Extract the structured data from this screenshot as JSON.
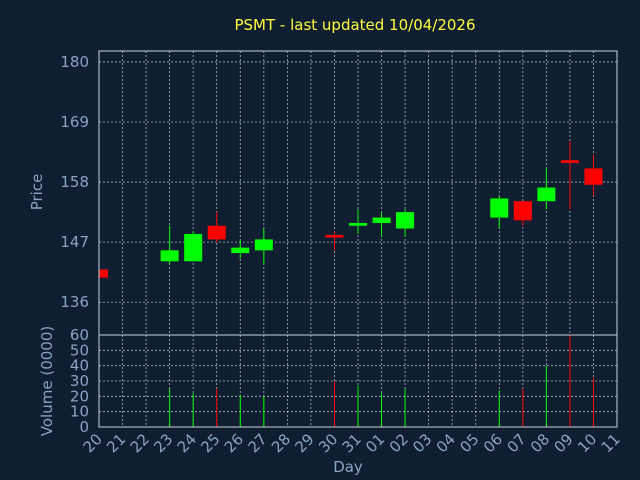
{
  "chart_data": {
    "type": "candlestick",
    "title": "PSMT - last updated 10/04/2026",
    "xlabel": "Day",
    "price_ylabel": "Price",
    "volume_ylabel": "Volume (0000)",
    "price_ylim": [
      130,
      182
    ],
    "price_ticks": [
      136,
      147,
      158,
      169,
      180
    ],
    "volume_ylim": [
      0,
      60
    ],
    "volume_ticks": [
      0,
      10,
      20,
      30,
      40,
      50,
      60
    ],
    "x_ticks": [
      "20",
      "21",
      "22",
      "23",
      "24",
      "25",
      "26",
      "27",
      "28",
      "29",
      "30",
      "31",
      "01",
      "02",
      "03",
      "04",
      "05",
      "06",
      "07",
      "08",
      "09",
      "10",
      "11"
    ],
    "grid": true,
    "colors": {
      "up": "#00ff00",
      "down": "#ff0000",
      "background": "#0f1e30",
      "title": "#ffff3c",
      "axis_text": "#8aa4c4"
    },
    "candles": [
      {
        "day": "20",
        "open": 142.0,
        "high": 142.0,
        "low": 140.5,
        "close": 140.5,
        "volume": 0
      },
      {
        "day": "23",
        "open": 143.5,
        "high": 150.0,
        "low": 143.0,
        "close": 145.5,
        "volume": 25
      },
      {
        "day": "24",
        "open": 143.5,
        "high": 149.0,
        "low": 143.5,
        "close": 148.5,
        "volume": 22
      },
      {
        "day": "25",
        "open": 150.0,
        "high": 152.5,
        "low": 147.0,
        "close": 147.5,
        "volume": 25
      },
      {
        "day": "26",
        "open": 145.0,
        "high": 147.5,
        "low": 144.0,
        "close": 146.0,
        "volume": 21
      },
      {
        "day": "27",
        "open": 145.5,
        "high": 149.5,
        "low": 143.0,
        "close": 147.5,
        "volume": 20
      },
      {
        "day": "30",
        "open": 148.3,
        "high": 149.0,
        "low": 145.5,
        "close": 148.0,
        "volume": 30
      },
      {
        "day": "31",
        "open": 150.0,
        "high": 153.0,
        "low": 148.5,
        "close": 150.5,
        "volume": 27
      },
      {
        "day": "01",
        "open": 150.5,
        "high": 152.5,
        "low": 148.0,
        "close": 151.5,
        "volume": 22
      },
      {
        "day": "02",
        "open": 149.5,
        "high": 153.0,
        "low": 148.0,
        "close": 152.5,
        "volume": 25
      },
      {
        "day": "06",
        "open": 151.5,
        "high": 155.5,
        "low": 149.5,
        "close": 155.0,
        "volume": 24
      },
      {
        "day": "07",
        "open": 154.5,
        "high": 154.5,
        "low": 150.0,
        "close": 151.0,
        "volume": 25
      },
      {
        "day": "08",
        "open": 154.5,
        "high": 160.5,
        "low": 153.0,
        "close": 157.0,
        "volume": 40
      },
      {
        "day": "09",
        "open": 162.0,
        "high": 165.5,
        "low": 153.0,
        "close": 161.5,
        "volume": 60
      },
      {
        "day": "10",
        "open": 160.5,
        "high": 163.0,
        "low": 155.5,
        "close": 157.5,
        "volume": 32
      }
    ]
  }
}
